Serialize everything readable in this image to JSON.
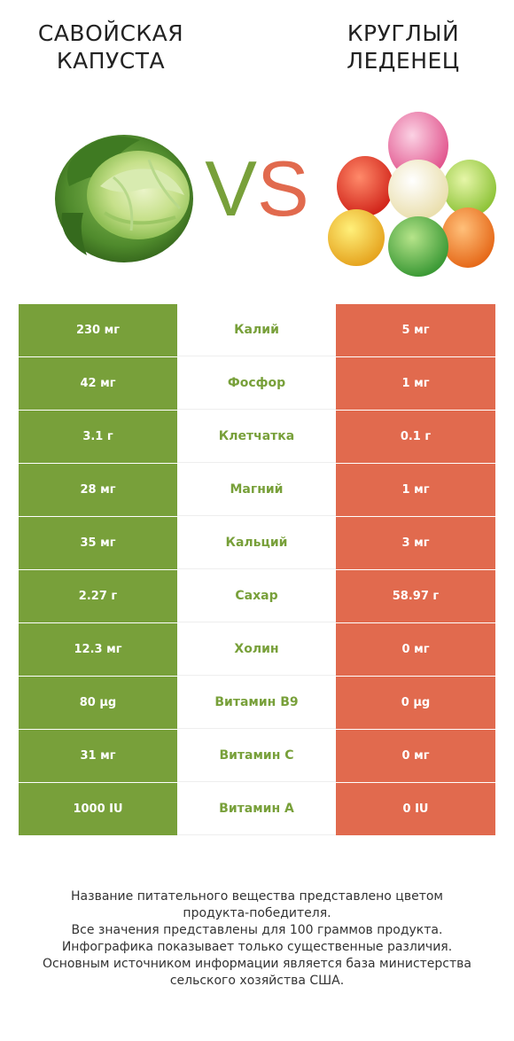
{
  "header": {
    "left_title_line1": "САВОЙСКАЯ",
    "left_title_line2": "КАПУСТА",
    "right_title_line1": "КРУГЛЫЙ",
    "right_title_line2": "ЛЕДЕНЕЦ",
    "vs_v": "V",
    "vs_s": "S"
  },
  "colors": {
    "winner_left": "#78a03a",
    "winner_right": "#e16a4e"
  },
  "icons": {
    "left": "savoy-cabbage-image",
    "right": "gumdrop-candies-image"
  },
  "rows": [
    {
      "left": "230 мг",
      "nutrient": "Калий",
      "right": "5 мг",
      "winner": "left"
    },
    {
      "left": "42 мг",
      "nutrient": "Фосфор",
      "right": "1 мг",
      "winner": "left"
    },
    {
      "left": "3.1 г",
      "nutrient": "Клетчатка",
      "right": "0.1 г",
      "winner": "left"
    },
    {
      "left": "28 мг",
      "nutrient": "Магний",
      "right": "1 мг",
      "winner": "left"
    },
    {
      "left": "35 мг",
      "nutrient": "Кальций",
      "right": "3 мг",
      "winner": "left"
    },
    {
      "left": "2.27 г",
      "nutrient": "Сахар",
      "right": "58.97 г",
      "winner": "left"
    },
    {
      "left": "12.3 мг",
      "nutrient": "Холин",
      "right": "0 мг",
      "winner": "left"
    },
    {
      "left": "80 µg",
      "nutrient": "Витамин B9",
      "right": "0 µg",
      "winner": "left"
    },
    {
      "left": "31 мг",
      "nutrient": "Витамин C",
      "right": "0 мг",
      "winner": "left"
    },
    {
      "left": "1000 IU",
      "nutrient": "Витамин A",
      "right": "0 IU",
      "winner": "left"
    }
  ],
  "footer": {
    "line1": "Название питательного вещества представлено цветом",
    "line2": "продукта-победителя.",
    "line3": "Все значения представлены для 100 граммов продукта.",
    "line4": "Инфографика показывает только существенные различия.",
    "line5": "Основным источником информации является база министерства",
    "line6": "сельского хозяйства США."
  }
}
